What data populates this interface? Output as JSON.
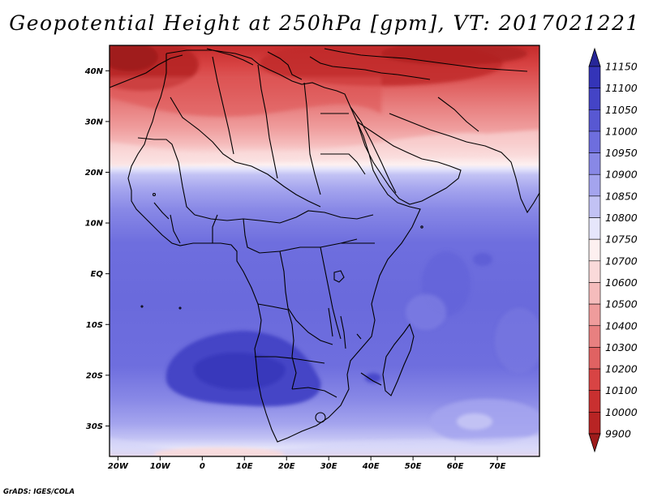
{
  "title": "Geopotential Height at 250hPa [gpm], VT: 2017021221",
  "credit": "GrADS: IGES/COLA",
  "map": {
    "lon_range": [
      -22,
      80
    ],
    "lat_range": [
      -36,
      45
    ],
    "lat_ticks": [
      {
        "lat": 40,
        "label": "40N"
      },
      {
        "lat": 30,
        "label": "30N"
      },
      {
        "lat": 20,
        "label": "20N"
      },
      {
        "lat": 10,
        "label": "10N"
      },
      {
        "lat": 0,
        "label": "EQ"
      },
      {
        "lat": -10,
        "label": "10S"
      },
      {
        "lat": -20,
        "label": "20S"
      },
      {
        "lat": -30,
        "label": "30S"
      }
    ],
    "lon_ticks": [
      {
        "lon": -20,
        "label": "20W"
      },
      {
        "lon": -10,
        "label": "10W"
      },
      {
        "lon": 0,
        "label": "0"
      },
      {
        "lon": 10,
        "label": "10E"
      },
      {
        "lon": 20,
        "label": "20E"
      },
      {
        "lon": 30,
        "label": "30E"
      },
      {
        "lon": 40,
        "label": "40E"
      },
      {
        "lon": 50,
        "label": "50E"
      },
      {
        "lon": 60,
        "label": "60E"
      },
      {
        "lon": 70,
        "label": "70E"
      }
    ]
  },
  "chart_data": {
    "type": "heatmap",
    "variable": "Geopotential Height at 250hPa",
    "units": "gpm",
    "valid_time": "2017021221",
    "levels": [
      9900,
      10000,
      10100,
      10200,
      10300,
      10400,
      10500,
      10600,
      10700,
      10750,
      10800,
      10850,
      10900,
      10950,
      11000,
      11050,
      11100,
      11150
    ],
    "colors": [
      "#9e1b1b",
      "#b82424",
      "#c93030",
      "#d84444",
      "#e06262",
      "#e88080",
      "#ef9c9c",
      "#f5bcbc",
      "#fadada",
      "#fdf0f0",
      "#e6e6fb",
      "#c2c2f4",
      "#a4a4ee",
      "#8888e6",
      "#6e6ede",
      "#5858d2",
      "#4444c6",
      "#3434b8",
      "#262698"
    ]
  }
}
